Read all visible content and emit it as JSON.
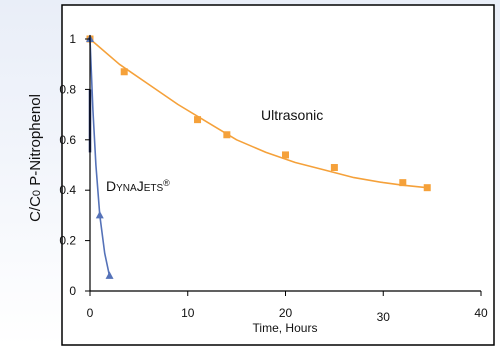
{
  "chart_data": {
    "type": "scatter",
    "title": "",
    "xlabel": "Time, Hours",
    "ylabel": "C/C0 P-Nitrophenol",
    "ylabel_parts": [
      "C/C",
      "0",
      " P-Nitrophenol"
    ],
    "xlim": [
      0,
      40
    ],
    "ylim": [
      0,
      1
    ],
    "x_ticks": [
      "0",
      "10",
      "20",
      "30",
      "40"
    ],
    "y_ticks": [
      "0",
      "0.2",
      "0.4",
      "0.6",
      "0.8",
      "1"
    ],
    "grid": false,
    "series": [
      {
        "name": "Ultrasonic",
        "color": "#f5a13a",
        "marker": "square",
        "points": [
          [
            0,
            1.0
          ],
          [
            3.5,
            0.87
          ],
          [
            11,
            0.68
          ],
          [
            14,
            0.62
          ],
          [
            20,
            0.54
          ],
          [
            25,
            0.49
          ],
          [
            32,
            0.43
          ],
          [
            34.5,
            0.41
          ]
        ],
        "curve": [
          [
            0,
            1.0
          ],
          [
            3,
            0.9
          ],
          [
            6,
            0.82
          ],
          [
            9,
            0.74
          ],
          [
            12,
            0.67
          ],
          [
            15,
            0.6
          ],
          [
            18,
            0.55
          ],
          [
            21,
            0.51
          ],
          [
            24,
            0.48
          ],
          [
            27,
            0.45
          ],
          [
            30,
            0.43
          ],
          [
            32,
            0.42
          ],
          [
            34.5,
            0.41
          ]
        ]
      },
      {
        "name": "DYNAJETS®",
        "label_parts": [
          "D",
          "YNA",
          "J",
          "ETS",
          "®"
        ],
        "color": "#5572b8",
        "marker": "triangle",
        "points": [
          [
            0,
            1.0
          ],
          [
            1,
            0.3
          ],
          [
            2,
            0.06
          ]
        ],
        "curve": [
          [
            0,
            1.0
          ],
          [
            0.3,
            0.72
          ],
          [
            0.6,
            0.5
          ],
          [
            1,
            0.3
          ],
          [
            1.5,
            0.15
          ],
          [
            2,
            0.06
          ]
        ]
      }
    ]
  }
}
